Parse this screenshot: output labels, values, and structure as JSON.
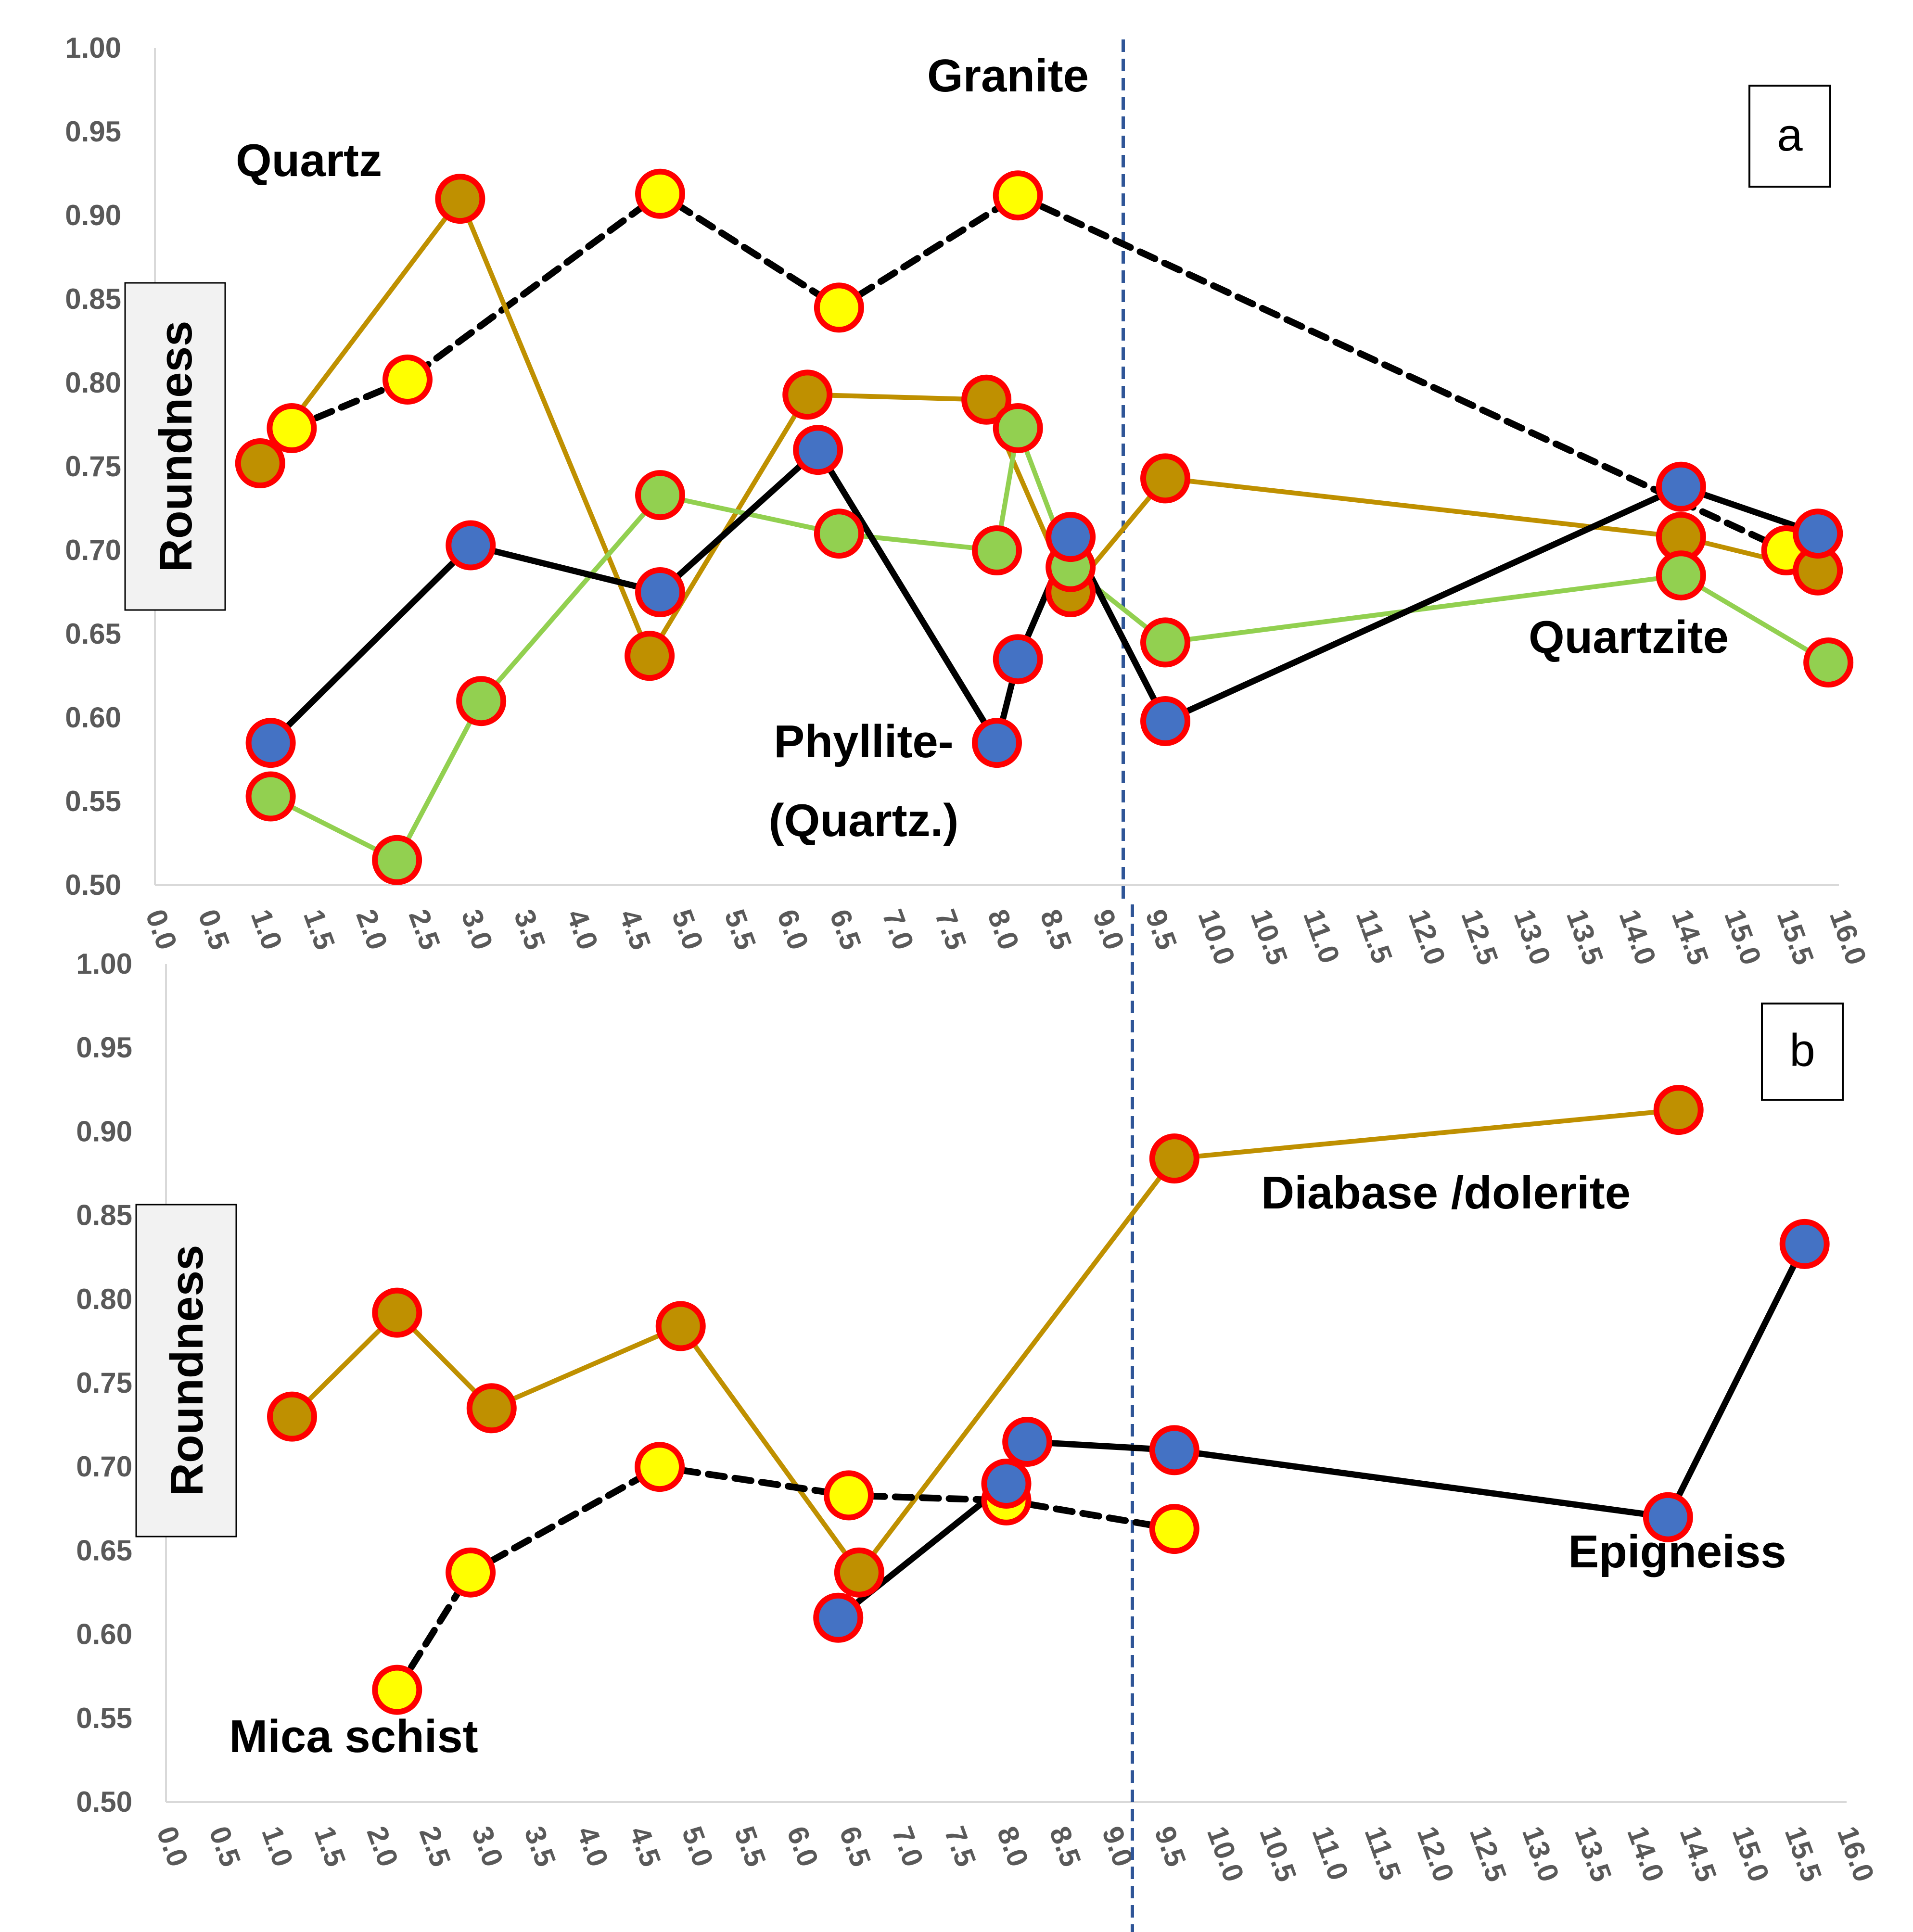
{
  "chart_data": [
    {
      "panel": "a",
      "type": "line",
      "xlim": [
        0,
        16
      ],
      "x_ticks": [
        "0.0",
        "0.5",
        "1.0",
        "1.5",
        "2.0",
        "2.5",
        "3.0",
        "3.5",
        "4.0",
        "4.5",
        "5.0",
        "5.5",
        "6.0",
        "6.5",
        "7.0",
        "7.5",
        "8.0",
        "8.5",
        "9.0",
        "9.5",
        "10.0",
        "10.5",
        "11.0",
        "11.5",
        "12.0",
        "12.5",
        "13.0",
        "13.5",
        "14.0",
        "14.5",
        "15.0",
        "15.5",
        "16.0"
      ],
      "ylim": [
        0.5,
        1.0
      ],
      "y_ticks": [
        "0.50",
        "0.55",
        "0.60",
        "0.65",
        "0.70",
        "0.75",
        "0.80",
        "0.85",
        "0.90",
        "0.95",
        "1.00"
      ],
      "ylabel": "Roundness",
      "panel_label": "a",
      "divider_x": 9.2,
      "annotations": [
        {
          "text": "Granite",
          "x": 8.1,
          "y": 0.97
        },
        {
          "text": "Quartz",
          "x": 1.5,
          "y": 0.92
        },
        {
          "text": "Phyllite-",
          "x": 6.9,
          "y": 0.57
        },
        {
          "text": "(Quartz.)",
          "x": 6.8,
          "y": 0.53
        },
        {
          "text": "Quartzite",
          "x": 14.1,
          "y": 0.63
        }
      ],
      "series": [
        {
          "color": "#000000",
          "dashed": true,
          "fill": "#ffff00",
          "stroke_width": 14,
          "x": [
            1.3,
            2.4,
            4.8,
            6.5,
            8.2,
            15.5
          ],
          "y": [
            0.773,
            0.802,
            0.913,
            0.845,
            0.912,
            0.7
          ]
        },
        {
          "color": "#bf9000",
          "dashed": false,
          "fill": "#bf9000",
          "stroke_width": 10,
          "x": [
            1.0,
            2.9,
            4.7,
            6.2,
            7.9,
            8.7,
            9.6,
            14.5,
            15.8
          ],
          "y": [
            0.752,
            0.91,
            0.637,
            0.793,
            0.79,
            0.675,
            0.743,
            0.708,
            0.688
          ]
        },
        {
          "color": "#92d050",
          "dashed": false,
          "fill": "#92d050",
          "stroke_width": 10,
          "x": [
            1.1,
            2.3,
            3.1,
            4.8,
            6.5,
            8.0,
            8.2,
            8.7,
            9.6,
            14.5,
            15.9
          ],
          "y": [
            0.553,
            0.515,
            0.61,
            0.733,
            0.71,
            0.7,
            0.773,
            0.69,
            0.645,
            0.685,
            0.633
          ]
        },
        {
          "color": "#000000",
          "dashed": false,
          "fill": "#4472c4",
          "stroke_width": 13,
          "x": [
            1.1,
            3.0,
            4.8,
            6.3,
            8.0,
            8.2,
            8.7,
            9.6,
            14.5,
            15.8
          ],
          "y": [
            0.585,
            0.703,
            0.675,
            0.76,
            0.585,
            0.635,
            0.708,
            0.598,
            0.738,
            0.71
          ]
        }
      ]
    },
    {
      "panel": "b",
      "type": "line",
      "xlim": [
        0,
        16
      ],
      "x_ticks": [
        "0.0",
        "0.5",
        "1.0",
        "1.5",
        "2.0",
        "2.5",
        "3.0",
        "3.5",
        "4.0",
        "4.5",
        "5.0",
        "5.5",
        "6.0",
        "6.5",
        "7.0",
        "7.5",
        "8.0",
        "8.5",
        "9.0",
        "9.5",
        "10.0",
        "10.5",
        "11.0",
        "11.5",
        "12.0",
        "12.5",
        "13.0",
        "13.5",
        "14.0",
        "14.5",
        "15.0",
        "15.5",
        "16.0"
      ],
      "ylim": [
        0.5,
        1.0
      ],
      "y_ticks": [
        "0.50",
        "0.55",
        "0.60",
        "0.65",
        "0.70",
        "0.75",
        "0.80",
        "0.85",
        "0.90",
        "0.95",
        "1.00"
      ],
      "ylabel": "Roundness",
      "panel_label": "b",
      "divider_x": 9.2,
      "annotations": [
        {
          "text": "Diabase /dolerite",
          "x": 12.1,
          "y": 0.825
        },
        {
          "text": "Epigneiss",
          "x": 14.4,
          "y": 0.633
        },
        {
          "text": "Mica schist",
          "x": 1.8,
          "y": 0.525
        }
      ],
      "series": [
        {
          "color": "#bf9000",
          "dashed": false,
          "fill": "#bf9000",
          "stroke_width": 10,
          "x": [
            1.2,
            2.2,
            3.1,
            4.9,
            6.6,
            9.6,
            14.4
          ],
          "y": [
            0.73,
            0.792,
            0.735,
            0.784,
            0.637,
            0.884,
            0.913
          ]
        },
        {
          "color": "#000000",
          "dashed": true,
          "fill": "#ffff00",
          "stroke_width": 14,
          "x": [
            2.2,
            2.9,
            4.7,
            6.5,
            8.0,
            9.6
          ],
          "y": [
            0.567,
            0.637,
            0.7,
            0.683,
            0.68,
            0.663
          ]
        },
        {
          "color": "#000000",
          "dashed": false,
          "fill": "#4472c4",
          "stroke_width": 13,
          "x": [
            6.4,
            8.0,
            8.2,
            9.6,
            14.3,
            15.6
          ],
          "y": [
            0.61,
            0.69,
            0.715,
            0.71,
            0.67,
            0.833
          ]
        }
      ]
    }
  ]
}
